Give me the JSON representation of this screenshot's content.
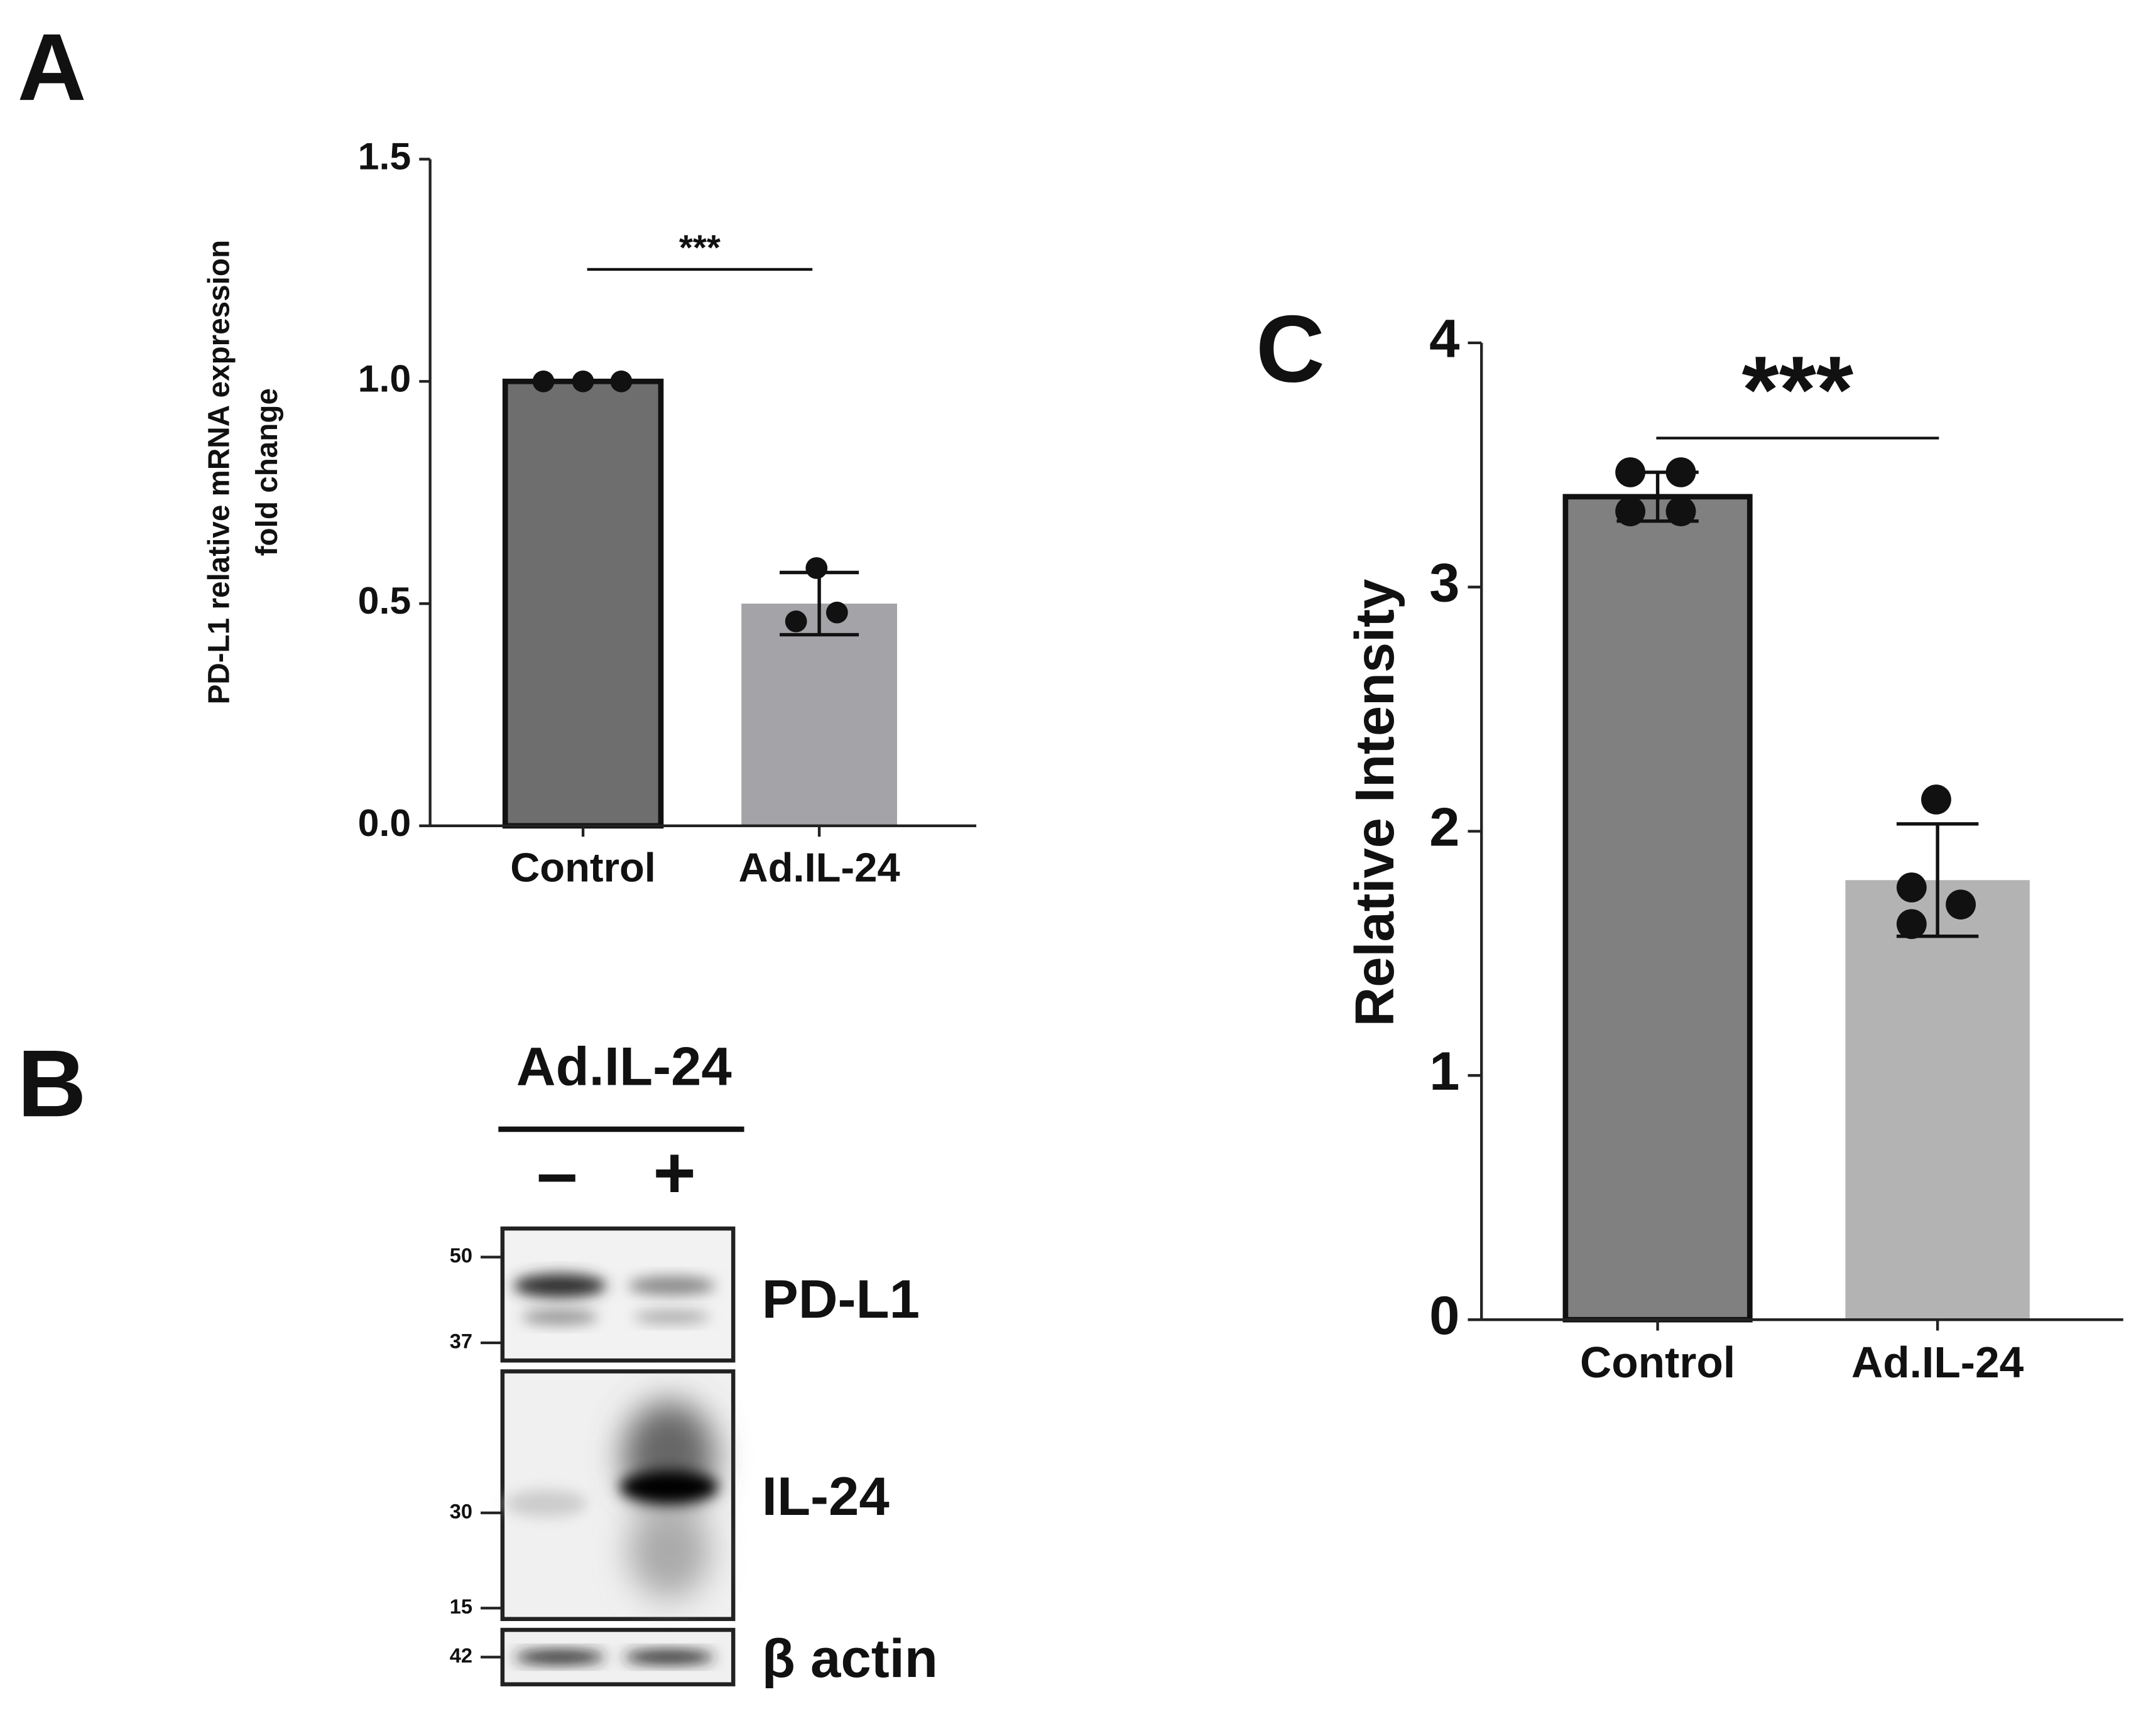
{
  "panel_labels": [
    "A",
    "B",
    "C"
  ],
  "chart_data": [
    {
      "type": "bar",
      "y_label": [
        "PD-L1 relative mRNA expression",
        "fold change"
      ],
      "categories": [
        "Control",
        "Ad.IL-24"
      ],
      "values": [
        1.0,
        0.5
      ],
      "errors": [
        0,
        0.07
      ],
      "points": [
        [
          1.0,
          1.0,
          1.0
        ],
        [
          0.58,
          0.46,
          0.48
        ]
      ],
      "colors": [
        "#6e6e6e",
        "#a3a3a8"
      ],
      "annotation": "***",
      "ylim": [
        0,
        1.5
      ],
      "yticks": [
        {
          "value": 0,
          "label": "0.0"
        },
        {
          "value": 0.5,
          "label": "0.5"
        },
        {
          "value": 1,
          "label": "1.0"
        },
        {
          "value": 1.5,
          "label": "1.5"
        }
      ]
    },
    {
      "type": "bar",
      "y_label": "Relative Intensity",
      "categories": [
        "Control",
        "Ad.IL-24"
      ],
      "values": [
        3.37,
        1.8
      ],
      "errors": [
        0.1,
        0.23
      ],
      "points": [
        [
          3.47,
          3.47,
          3.31,
          3.31
        ],
        [
          2.13,
          1.77,
          1.7,
          1.62
        ]
      ],
      "colors": [
        "#808080",
        "#b3b3b3"
      ],
      "annotation": "***",
      "ylim": [
        0,
        4
      ],
      "yticks": [
        0,
        1,
        2,
        3,
        4
      ]
    }
  ],
  "blot": {
    "treatment": "Ad.IL-24",
    "lanes": [
      "–",
      "+"
    ],
    "markers": [
      "50",
      "37",
      "30",
      "15",
      "42"
    ],
    "proteins": [
      "PD-L1",
      "IL-24",
      "β actin"
    ]
  }
}
